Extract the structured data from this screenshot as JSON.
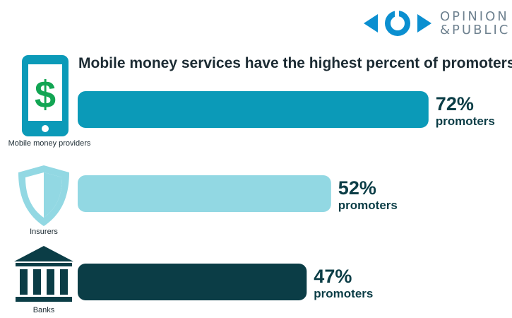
{
  "brand": {
    "line1": "OPINION",
    "line2": "&PUBLIC",
    "logo_icon": "opinion-public-logo-icon"
  },
  "chart_data": {
    "type": "bar",
    "orientation": "horizontal",
    "title": "Mobile money services have the highest percent of promoters",
    "xlim": [
      0,
      100
    ],
    "categories": [
      "Mobile money providers",
      "Insurers",
      "Banks"
    ],
    "values": [
      72,
      52,
      47
    ],
    "value_suffix": "%",
    "value_unit": "promoters",
    "icons": [
      "mobile-phone-dollar-icon",
      "shield-icon",
      "bank-building-icon"
    ],
    "colors": [
      "#0b9ab8",
      "#92d8e3",
      "#0b3d46"
    ],
    "label_colors": [
      "#0b3d46",
      "#0b3d46",
      "#0b3d46"
    ],
    "grid": false,
    "legend": "none"
  }
}
